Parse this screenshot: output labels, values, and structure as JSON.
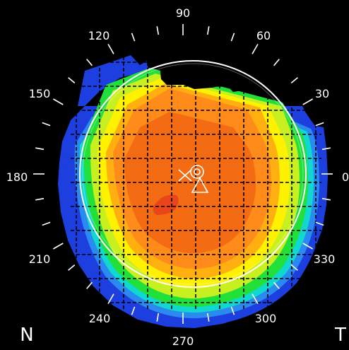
{
  "axis_labels": {
    "deg_0": "0",
    "deg_30": "30",
    "deg_60": "60",
    "deg_90": "90",
    "deg_120": "120",
    "deg_150": "150",
    "deg_180": "180",
    "deg_210": "210",
    "deg_240": "240",
    "deg_270": "270",
    "deg_300": "300",
    "deg_330": "330"
  },
  "side_labels": {
    "nasal": "N",
    "temporal": "T"
  },
  "colors": {
    "background": "#000000",
    "zone_outer": "#1d3fe0",
    "zone_blue_light": "#2a8af0",
    "zone_cyan": "#10d8d0",
    "zone_green": "#22e03a",
    "zone_yellow_green": "#c8f020",
    "zone_yellow": "#fff200",
    "zone_light_orange": "#ffb010",
    "zone_orange": "#ff8c1a",
    "zone_dark_orange": "#f36b12",
    "zone_red_orange": "#e8461a",
    "grid": "#000000",
    "ring": "#ffffff"
  },
  "icons": {
    "center_marker": "x-circle-triangle-markers"
  }
}
